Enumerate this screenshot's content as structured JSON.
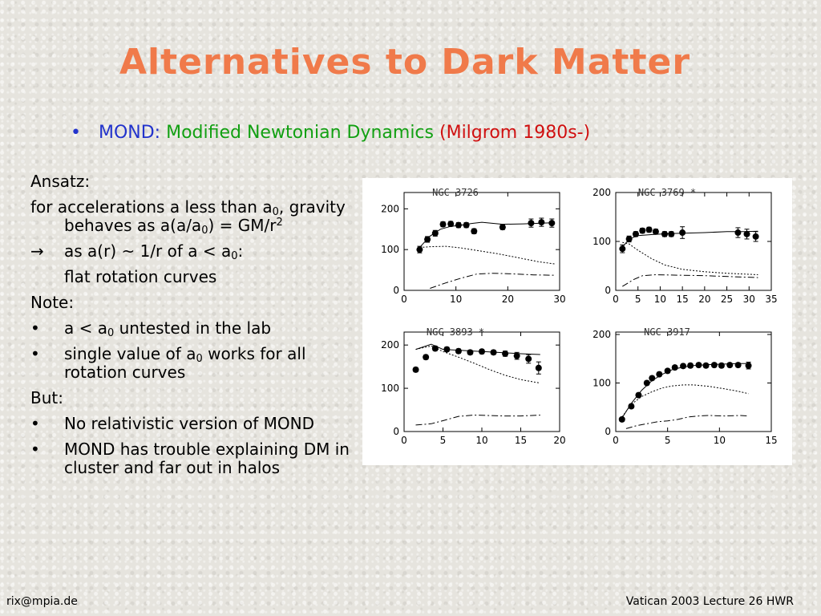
{
  "slide": {
    "title": "Alternatives to Dark Matter",
    "subtitle": {
      "bullet": "•",
      "part1": "MOND:",
      "part2": "Modified Newtonian Dynamics",
      "part3": "(Milgrom 1980s-)"
    },
    "body": {
      "ansatz": "Ansatz:",
      "accel_line": {
        "a": "for accelerations a less than a",
        "b": "0",
        "c": ", gravity behaves as a(a/a",
        "d": "0",
        "e": ") = GM/r",
        "f": "2"
      },
      "implies": {
        "arrow": "→",
        "a": "as a(r) ~ 1/r of a < a",
        "b": "0",
        "c": ":"
      },
      "flat": "flat rotation curves",
      "note": "Note:",
      "note_items": [
        {
          "bullet": "•",
          "a": "a < a",
          "b": "0",
          "c": " untested in the lab"
        },
        {
          "bullet": "•",
          "a": "single value of a",
          "b": "0",
          "c": " works for all rotation curves"
        }
      ],
      "but": "But:",
      "but_items": [
        {
          "bullet": "•",
          "text": "No relativistic version of MOND"
        },
        {
          "bullet": "•",
          "text": "MOND has trouble explaining DM in cluster and far out in halos"
        }
      ]
    },
    "footer": {
      "left": "rix@mpia.de",
      "right": "Vatican 2003 Lecture 26 HWR"
    }
  },
  "chart_data": [
    {
      "type": "scatter",
      "title": "NGC 3726",
      "xlim": [
        0,
        30
      ],
      "ylim": [
        0,
        240
      ],
      "xticks": [
        0,
        10,
        20,
        30
      ],
      "yticks": [
        0,
        100,
        200
      ],
      "points": [
        [
          3,
          100
        ],
        [
          4.5,
          125
        ],
        [
          6,
          140
        ],
        [
          7.5,
          162
        ],
        [
          9,
          163
        ],
        [
          10.5,
          160
        ],
        [
          12,
          160
        ],
        [
          13.5,
          145
        ],
        [
          19,
          155
        ],
        [
          24.5,
          165
        ],
        [
          26.5,
          167
        ],
        [
          28.5,
          165
        ]
      ],
      "errors": [
        8,
        7,
        7,
        6,
        6,
        6,
        6,
        6,
        6,
        10,
        10,
        10
      ],
      "mond": [
        [
          3,
          105
        ],
        [
          5,
          133
        ],
        [
          7,
          150
        ],
        [
          9,
          157
        ],
        [
          11,
          160
        ],
        [
          13,
          164
        ],
        [
          15,
          167
        ],
        [
          19,
          162
        ],
        [
          23,
          163
        ],
        [
          27,
          165
        ],
        [
          29,
          166
        ]
      ],
      "stars": [
        [
          3,
          105
        ],
        [
          5,
          107
        ],
        [
          8,
          108
        ],
        [
          11,
          104
        ],
        [
          14,
          98
        ],
        [
          18,
          90
        ],
        [
          22,
          80
        ],
        [
          26,
          70
        ],
        [
          29,
          65
        ]
      ],
      "gas": [
        [
          5,
          5
        ],
        [
          8,
          18
        ],
        [
          11,
          30
        ],
        [
          14,
          40
        ],
        [
          17,
          42
        ],
        [
          20,
          41
        ],
        [
          25,
          38
        ],
        [
          29,
          37
        ]
      ]
    },
    {
      "type": "scatter",
      "title": "NGC 3769 *",
      "xlim": [
        0,
        35
      ],
      "ylim": [
        0,
        200
      ],
      "xticks": [
        0,
        5,
        10,
        15,
        20,
        25,
        30,
        35
      ],
      "yticks": [
        0,
        100,
        200
      ],
      "points": [
        [
          1.5,
          85
        ],
        [
          3,
          105
        ],
        [
          4.5,
          115
        ],
        [
          6,
          122
        ],
        [
          7.5,
          124
        ],
        [
          9,
          120
        ],
        [
          11,
          115
        ],
        [
          12.5,
          115
        ],
        [
          15,
          118
        ],
        [
          27.5,
          118
        ],
        [
          29.5,
          115
        ],
        [
          31.5,
          110
        ]
      ],
      "errors": [
        8,
        6,
        5,
        5,
        5,
        5,
        5,
        5,
        12,
        10,
        10,
        10
      ],
      "mond": [
        [
          1.5,
          88
        ],
        [
          3,
          105
        ],
        [
          5,
          112
        ],
        [
          8,
          114
        ],
        [
          12,
          116
        ],
        [
          16,
          117
        ],
        [
          20,
          118
        ],
        [
          25,
          120
        ],
        [
          29,
          120
        ],
        [
          32,
          121
        ]
      ],
      "stars": [
        [
          1.5,
          98
        ],
        [
          3,
          95
        ],
        [
          5,
          82
        ],
        [
          8,
          65
        ],
        [
          11,
          52
        ],
        [
          15,
          43
        ],
        [
          20,
          38
        ],
        [
          25,
          35
        ],
        [
          32,
          32
        ]
      ],
      "gas": [
        [
          1.5,
          8
        ],
        [
          4,
          22
        ],
        [
          6,
          30
        ],
        [
          9,
          32
        ],
        [
          14,
          31
        ],
        [
          20,
          30
        ],
        [
          26,
          28
        ],
        [
          32,
          26
        ]
      ]
    },
    {
      "type": "scatter",
      "title": "NGC 3893 *",
      "xlim": [
        0,
        20
      ],
      "ylim": [
        0,
        230
      ],
      "xticks": [
        0,
        5,
        10,
        15,
        20
      ],
      "yticks": [
        0,
        100,
        200
      ],
      "points": [
        [
          1.5,
          143
        ],
        [
          2.8,
          172
        ],
        [
          4,
          192
        ],
        [
          5.5,
          190
        ],
        [
          7,
          186
        ],
        [
          8.5,
          183
        ],
        [
          10,
          185
        ],
        [
          11.5,
          183
        ],
        [
          13,
          180
        ],
        [
          14.5,
          175
        ],
        [
          16,
          168
        ],
        [
          17.3,
          147
        ]
      ],
      "errors": [
        5,
        5,
        5,
        5,
        5,
        5,
        5,
        5,
        6,
        8,
        10,
        14
      ],
      "mond": [
        [
          1.5,
          190
        ],
        [
          3.5,
          202
        ],
        [
          5,
          190
        ],
        [
          7,
          188
        ],
        [
          9,
          186
        ],
        [
          11,
          184
        ],
        [
          13,
          182
        ],
        [
          15,
          180
        ],
        [
          17.5,
          178
        ]
      ],
      "stars": [
        [
          1.5,
          190
        ],
        [
          3.5,
          198
        ],
        [
          5,
          185
        ],
        [
          7,
          172
        ],
        [
          9,
          158
        ],
        [
          11,
          143
        ],
        [
          13,
          130
        ],
        [
          15,
          120
        ],
        [
          17.5,
          112
        ]
      ],
      "gas": [
        [
          1.5,
          15
        ],
        [
          3.5,
          18
        ],
        [
          5,
          25
        ],
        [
          7,
          35
        ],
        [
          9,
          38
        ],
        [
          11,
          37
        ],
        [
          13,
          36
        ],
        [
          15,
          36
        ],
        [
          17.5,
          38
        ]
      ]
    },
    {
      "type": "scatter",
      "title": "NGC 3917",
      "xlim": [
        0,
        15
      ],
      "ylim": [
        0,
        205
      ],
      "xticks": [
        0,
        5,
        10,
        15
      ],
      "yticks": [
        0,
        100,
        200
      ],
      "points": [
        [
          0.6,
          25
        ],
        [
          1.5,
          52
        ],
        [
          2.2,
          75
        ],
        [
          3,
          100
        ],
        [
          3.5,
          110
        ],
        [
          4.2,
          118
        ],
        [
          5,
          125
        ],
        [
          5.7,
          132
        ],
        [
          6.5,
          135
        ],
        [
          7.2,
          136
        ],
        [
          8,
          137
        ],
        [
          8.7,
          136
        ],
        [
          9.5,
          137
        ],
        [
          10.2,
          136
        ],
        [
          11,
          137
        ],
        [
          11.8,
          137
        ],
        [
          12.8,
          136
        ]
      ],
      "errors": [
        4,
        4,
        4,
        4,
        4,
        4,
        4,
        4,
        4,
        4,
        4,
        4,
        4,
        4,
        4,
        4,
        7
      ],
      "mond": [
        [
          0.6,
          28
        ],
        [
          1.5,
          58
        ],
        [
          2.5,
          85
        ],
        [
          3.5,
          105
        ],
        [
          4.5,
          118
        ],
        [
          5.5,
          128
        ],
        [
          6.5,
          133
        ],
        [
          7.5,
          136
        ],
        [
          9,
          138
        ],
        [
          10.5,
          139
        ],
        [
          11.8,
          140
        ],
        [
          12.8,
          140
        ]
      ],
      "stars": [
        [
          0.6,
          30
        ],
        [
          1.5,
          56
        ],
        [
          2.5,
          72
        ],
        [
          3.5,
          82
        ],
        [
          4.5,
          90
        ],
        [
          5.5,
          94
        ],
        [
          6.5,
          96
        ],
        [
          7.5,
          96
        ],
        [
          9,
          93
        ],
        [
          10.5,
          88
        ],
        [
          11.8,
          83
        ],
        [
          12.8,
          78
        ]
      ],
      "gas": [
        [
          1,
          6
        ],
        [
          2,
          12
        ],
        [
          3,
          16
        ],
        [
          4,
          20
        ],
        [
          5,
          22
        ],
        [
          6,
          25
        ],
        [
          7,
          30
        ],
        [
          8,
          32
        ],
        [
          9,
          33
        ],
        [
          10.5,
          32
        ],
        [
          12,
          33
        ],
        [
          12.8,
          32
        ]
      ]
    }
  ]
}
